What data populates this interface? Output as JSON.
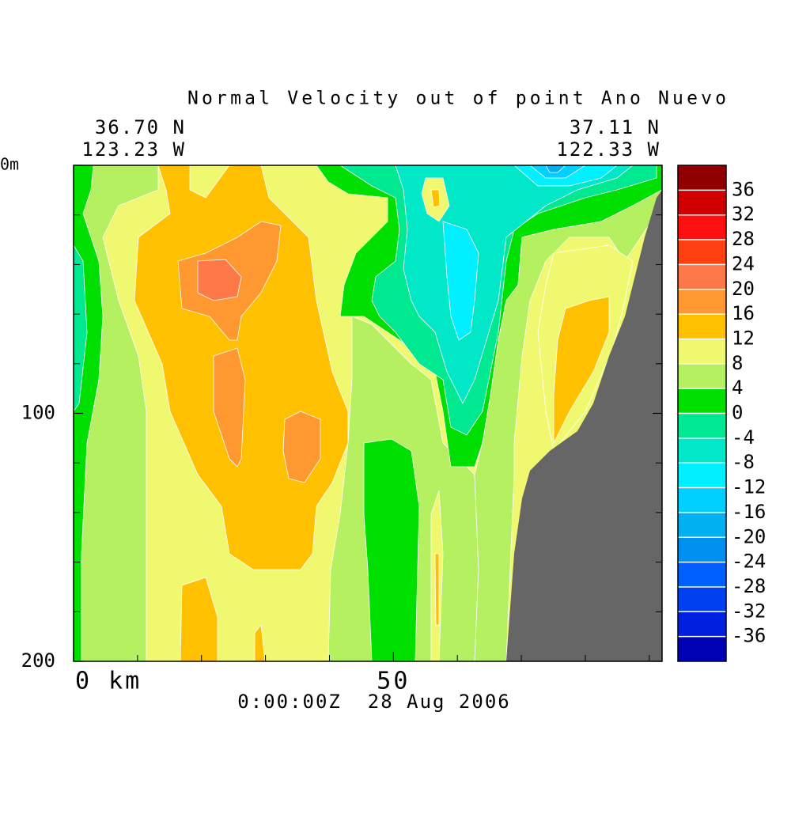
{
  "chart_data": {
    "type": "contour",
    "title": "Normal Velocity out of point Ano Nuevo",
    "left_lat": "36.70 N",
    "left_lon": "123.23 W",
    "right_lat": "37.11 N",
    "right_lon": "122.33 W",
    "time_label": "0:00:00Z  28 Aug 2006",
    "xlim": [
      0,
      92
    ],
    "xticks": [
      {
        "value": 0,
        "label": "0 km"
      },
      50
    ],
    "xminorticks": [
      10,
      20,
      30,
      40,
      60,
      70,
      80,
      90
    ],
    "ylim": [
      0,
      200
    ],
    "yticks": [
      {
        "value": 0,
        "label": "0m"
      },
      100,
      200
    ],
    "yminorticks": [
      20,
      40,
      60,
      80,
      120,
      140,
      160,
      180
    ],
    "levels": [
      -40,
      -36,
      -32,
      -28,
      -24,
      -20,
      -16,
      -12,
      -8,
      -4,
      0,
      4,
      8,
      12,
      16,
      20,
      24,
      28,
      32,
      36,
      40
    ],
    "colors": [
      "#0000b4",
      "#0020e0",
      "#0040f0",
      "#0060ff",
      "#0090f0",
      "#00b0f0",
      "#00d0ff",
      "#00f0ff",
      "#00e8c8",
      "#00e890",
      "#00e000",
      "#b4f060",
      "#f0f870",
      "#ffc000",
      "#ff9830",
      "#ff7848",
      "#ff4010",
      "#ff1010",
      "#d00000",
      "#900000"
    ],
    "land_color": "#666666"
  }
}
